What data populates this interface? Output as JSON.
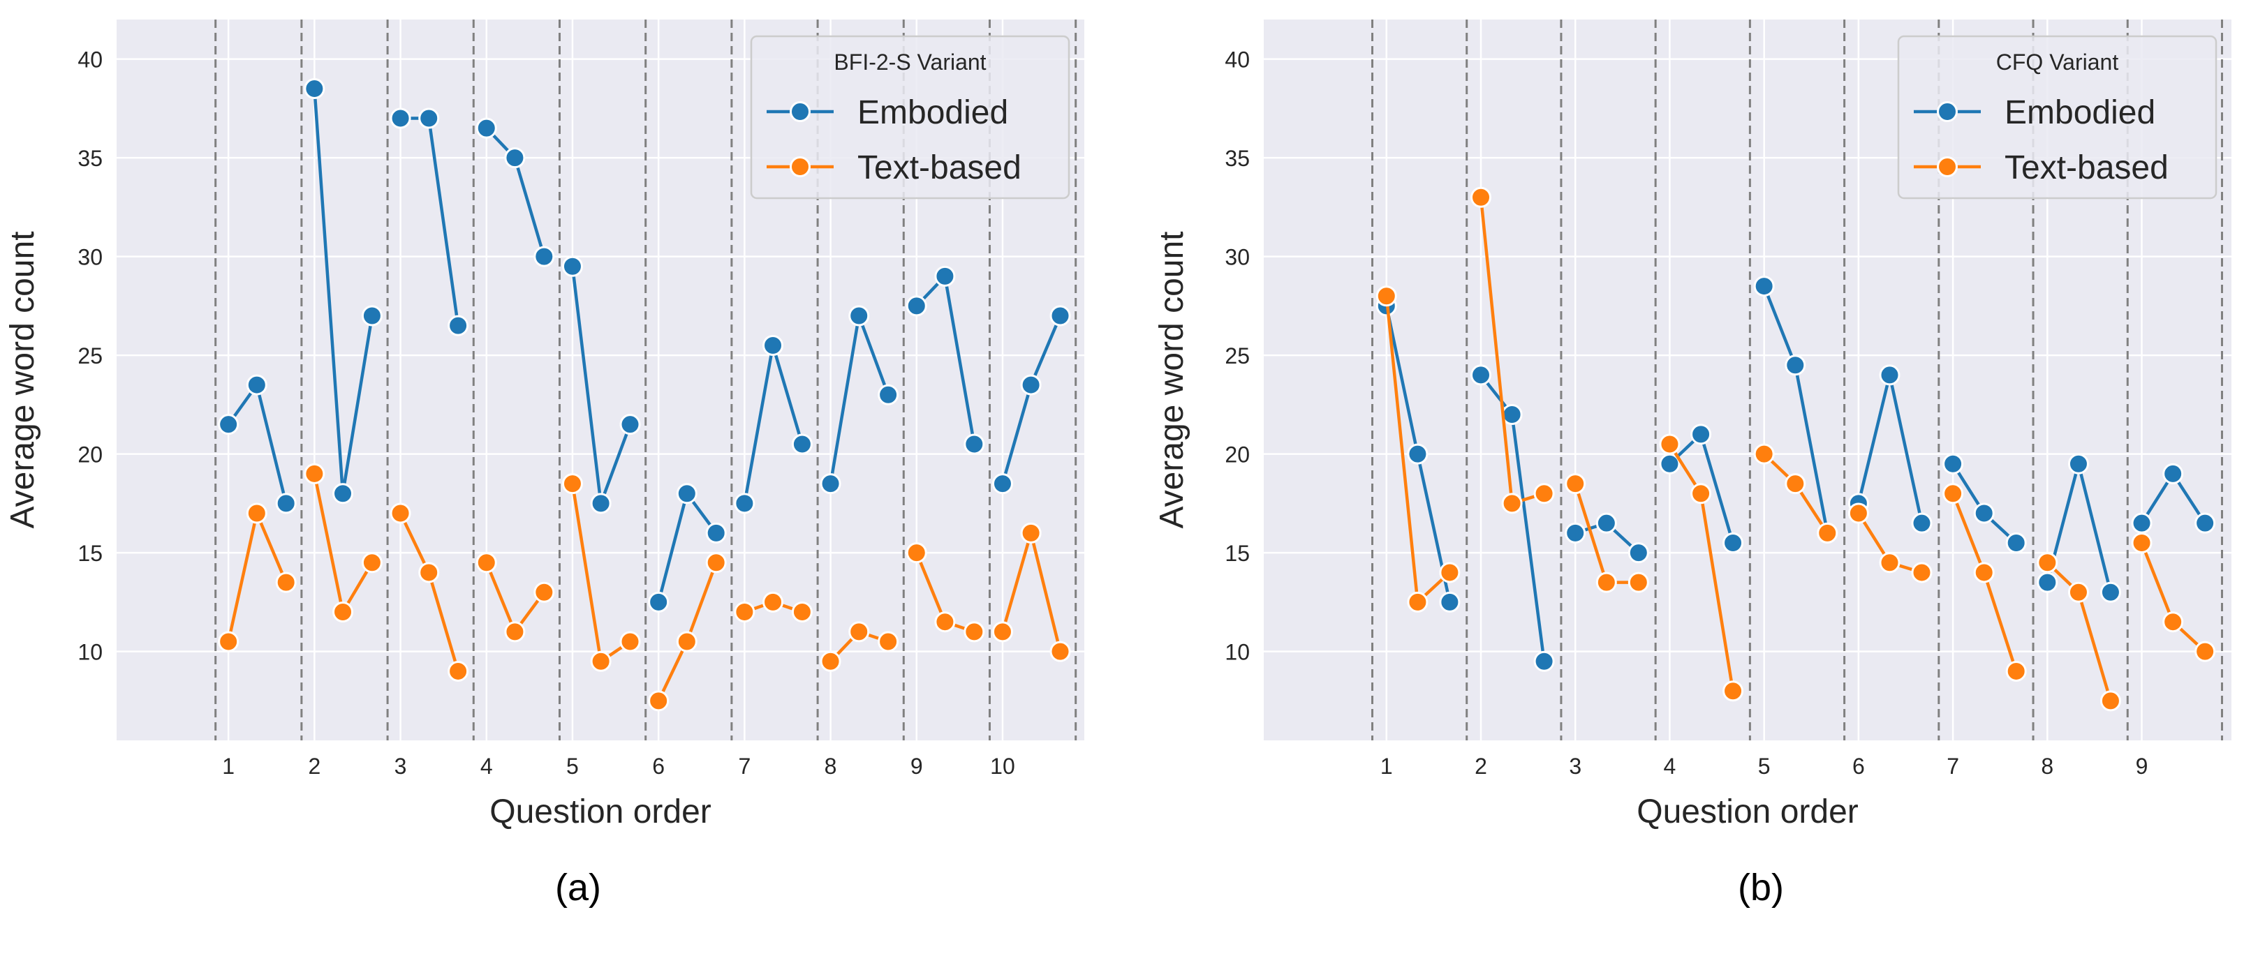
{
  "chart_data": [
    {
      "type": "line",
      "panel_label": "(a)",
      "xlabel": "Question order",
      "ylabel": "Average word count",
      "ylim": [
        5.5,
        42
      ],
      "yticks": [
        10,
        15,
        20,
        25,
        30,
        35,
        40
      ],
      "xlim": [
        -0.3,
        10.95
      ],
      "xticks": [
        1,
        2,
        3,
        4,
        5,
        6,
        7,
        8,
        9,
        10
      ],
      "group_dividers": [
        0.85,
        1.85,
        2.85,
        3.85,
        4.85,
        5.85,
        6.85,
        7.85,
        8.85,
        9.85,
        10.85
      ],
      "grid": true,
      "legend": {
        "title": "BFI-2-S Variant",
        "placement": "top-right"
      },
      "series": [
        {
          "name": "Embodied",
          "color": "#1f77b4",
          "points": [
            [
              1.0,
              21.5
            ],
            [
              1.33,
              23.5
            ],
            [
              1.67,
              17.5
            ],
            [
              2.0,
              38.5
            ],
            [
              2.33,
              18.0
            ],
            [
              2.67,
              27.0
            ],
            [
              3.0,
              37.0
            ],
            [
              3.33,
              37.0
            ],
            [
              3.67,
              26.5
            ],
            [
              4.0,
              36.5
            ],
            [
              4.33,
              35.0
            ],
            [
              4.67,
              30.0
            ],
            [
              5.0,
              29.5
            ],
            [
              5.33,
              17.5
            ],
            [
              5.67,
              21.5
            ],
            [
              6.0,
              12.5
            ],
            [
              6.33,
              18.0
            ],
            [
              6.67,
              16.0
            ],
            [
              7.0,
              17.5
            ],
            [
              7.33,
              25.5
            ],
            [
              7.67,
              20.5
            ],
            [
              8.0,
              18.5
            ],
            [
              8.33,
              27.0
            ],
            [
              8.67,
              23.0
            ],
            [
              9.0,
              27.5
            ],
            [
              9.33,
              29.0
            ],
            [
              9.67,
              20.5
            ],
            [
              10.0,
              18.5
            ],
            [
              10.33,
              23.5
            ],
            [
              10.67,
              27.0
            ]
          ]
        },
        {
          "name": "Text-based",
          "color": "#ff7f0e",
          "points": [
            [
              1.0,
              10.5
            ],
            [
              1.33,
              17.0
            ],
            [
              1.67,
              13.5
            ],
            [
              2.0,
              19.0
            ],
            [
              2.33,
              12.0
            ],
            [
              2.67,
              14.5
            ],
            [
              3.0,
              17.0
            ],
            [
              3.33,
              14.0
            ],
            [
              3.67,
              9.0
            ],
            [
              4.0,
              14.5
            ],
            [
              4.33,
              11.0
            ],
            [
              4.67,
              13.0
            ],
            [
              5.0,
              18.5
            ],
            [
              5.33,
              9.5
            ],
            [
              5.67,
              10.5
            ],
            [
              6.0,
              7.5
            ],
            [
              6.33,
              10.5
            ],
            [
              6.67,
              14.5
            ],
            [
              7.0,
              12.0
            ],
            [
              7.33,
              12.5
            ],
            [
              7.67,
              12.0
            ],
            [
              8.0,
              9.5
            ],
            [
              8.33,
              11.0
            ],
            [
              8.67,
              10.5
            ],
            [
              9.0,
              15.0
            ],
            [
              9.33,
              11.5
            ],
            [
              9.67,
              11.0
            ],
            [
              10.0,
              11.0
            ],
            [
              10.33,
              16.0
            ],
            [
              10.67,
              10.0
            ]
          ]
        }
      ]
    },
    {
      "type": "line",
      "panel_label": "(b)",
      "xlabel": "Question order",
      "ylabel": "Average word count",
      "ylim": [
        5.5,
        42
      ],
      "yticks": [
        10,
        15,
        20,
        25,
        30,
        35,
        40
      ],
      "xlim": [
        -0.3,
        9.95
      ],
      "xticks": [
        1,
        2,
        3,
        4,
        5,
        6,
        7,
        8,
        9
      ],
      "group_dividers": [
        0.85,
        1.85,
        2.85,
        3.85,
        4.85,
        5.85,
        6.85,
        7.85,
        8.85,
        9.85
      ],
      "grid": true,
      "legend": {
        "title": "CFQ Variant",
        "placement": "top-right"
      },
      "series": [
        {
          "name": "Embodied",
          "color": "#1f77b4",
          "points": [
            [
              1.0,
              27.5
            ],
            [
              1.33,
              20.0
            ],
            [
              1.67,
              12.5
            ],
            [
              2.0,
              24.0
            ],
            [
              2.33,
              22.0
            ],
            [
              2.67,
              9.5
            ],
            [
              3.0,
              16.0
            ],
            [
              3.33,
              16.5
            ],
            [
              3.67,
              15.0
            ],
            [
              4.0,
              19.5
            ],
            [
              4.33,
              21.0
            ],
            [
              4.67,
              15.5
            ],
            [
              5.0,
              28.5
            ],
            [
              5.33,
              24.5
            ],
            [
              5.67,
              16.0
            ],
            [
              6.0,
              17.5
            ],
            [
              6.33,
              24.0
            ],
            [
              6.67,
              16.5
            ],
            [
              7.0,
              19.5
            ],
            [
              7.33,
              17.0
            ],
            [
              7.67,
              15.5
            ],
            [
              8.0,
              13.5
            ],
            [
              8.33,
              19.5
            ],
            [
              8.67,
              13.0
            ],
            [
              9.0,
              16.5
            ],
            [
              9.33,
              19.0
            ],
            [
              9.67,
              16.5
            ]
          ]
        },
        {
          "name": "Text-based",
          "color": "#ff7f0e",
          "points": [
            [
              1.0,
              28.0
            ],
            [
              1.33,
              12.5
            ],
            [
              1.67,
              14.0
            ],
            [
              2.0,
              33.0
            ],
            [
              2.33,
              17.5
            ],
            [
              2.67,
              18.0
            ],
            [
              3.0,
              18.5
            ],
            [
              3.33,
              13.5
            ],
            [
              3.67,
              13.5
            ],
            [
              4.0,
              20.5
            ],
            [
              4.33,
              18.0
            ],
            [
              4.67,
              8.0
            ],
            [
              5.0,
              20.0
            ],
            [
              5.33,
              18.5
            ],
            [
              5.67,
              16.0
            ],
            [
              6.0,
              17.0
            ],
            [
              6.33,
              14.5
            ],
            [
              6.67,
              14.0
            ],
            [
              7.0,
              18.0
            ],
            [
              7.33,
              14.0
            ],
            [
              7.67,
              9.0
            ],
            [
              8.0,
              14.5
            ],
            [
              8.33,
              13.0
            ],
            [
              8.67,
              7.5
            ],
            [
              9.0,
              15.5
            ],
            [
              9.33,
              11.5
            ],
            [
              9.67,
              10.0
            ]
          ]
        }
      ]
    }
  ]
}
